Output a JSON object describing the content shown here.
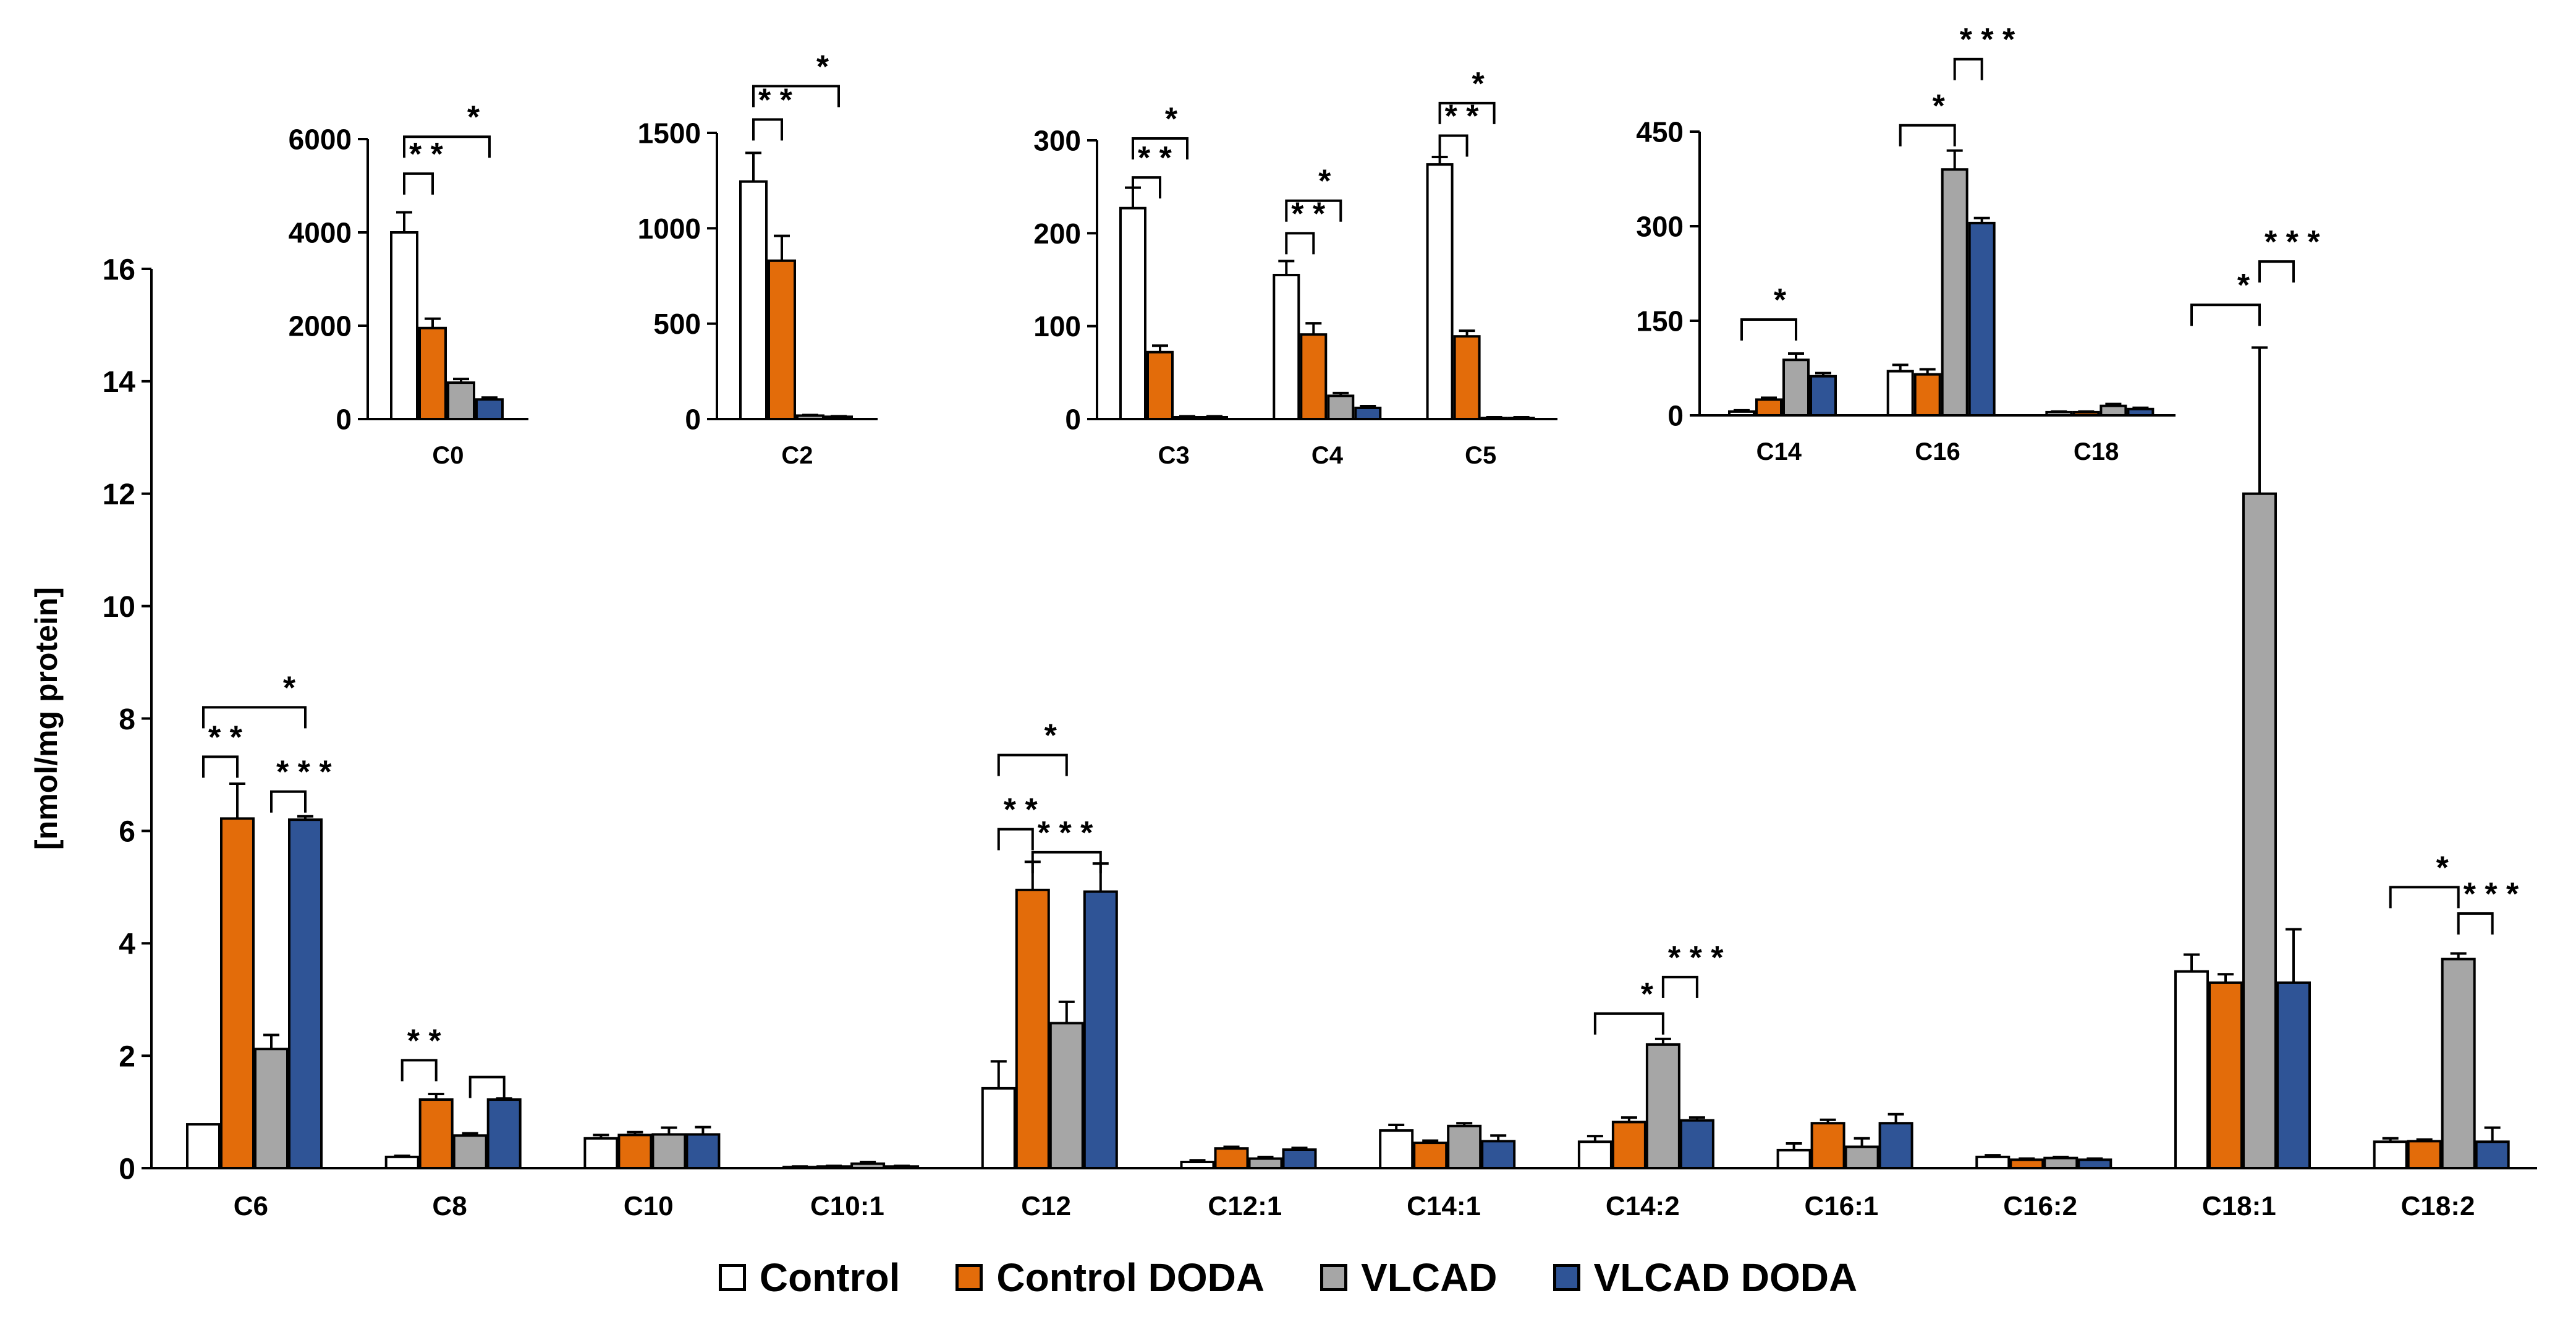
{
  "colors": {
    "Control": "#ffffff",
    "Control DODA": "#e36c0a",
    "VLCAD": "#a6a6a6",
    "VLCAD DODA": "#2f5496"
  },
  "legend": [
    {
      "label": "Control",
      "color": "#ffffff"
    },
    {
      "label": "Control DODA",
      "color": "#e36c0a"
    },
    {
      "label": "VLCAD",
      "color": "#a6a6a6"
    },
    {
      "label": "VLCAD DODA",
      "color": "#2f5496"
    }
  ],
  "chart_data": [
    {
      "id": "main",
      "type": "bar",
      "ylabel": "[nmol/mg protein]",
      "ylim": [
        0,
        16
      ],
      "yticks": [
        0,
        2,
        4,
        6,
        8,
        10,
        12,
        14,
        16
      ],
      "yticklabels": [
        "0",
        "2",
        "4",
        "6",
        "8",
        "10",
        "12",
        "14",
        "16"
      ],
      "categories": [
        "C6",
        "C8",
        "C10",
        "C10:1",
        "C12",
        "C12:1",
        "C14:1",
        "C14:2",
        "C16:1",
        "C16:2",
        "C18:1",
        "C18:2"
      ],
      "series": [
        {
          "name": "Control",
          "values": [
            0.78,
            0.2,
            0.53,
            0.02,
            1.42,
            0.11,
            0.67,
            0.47,
            0.32,
            0.2,
            3.5,
            0.47
          ],
          "errors": [
            0,
            0.02,
            0.06,
            0.01,
            0.48,
            0.03,
            0.1,
            0.1,
            0.12,
            0.03,
            0.3,
            0.06
          ]
        },
        {
          "name": "Control DODA",
          "values": [
            6.22,
            1.22,
            0.59,
            0.03,
            4.95,
            0.35,
            0.45,
            0.82,
            0.8,
            0.15,
            3.3,
            0.48
          ],
          "errors": [
            0.62,
            0.1,
            0.05,
            0.01,
            0.5,
            0.03,
            0.04,
            0.08,
            0.06,
            0.02,
            0.15,
            0.03
          ]
        },
        {
          "name": "VLCAD",
          "values": [
            2.12,
            0.58,
            0.6,
            0.08,
            2.58,
            0.17,
            0.75,
            2.2,
            0.38,
            0.18,
            12.0,
            3.72
          ],
          "errors": [
            0.25,
            0.04,
            0.12,
            0.03,
            0.38,
            0.03,
            0.05,
            0.1,
            0.15,
            0.02,
            2.6,
            0.1
          ]
        },
        {
          "name": "VLCAD DODA",
          "values": [
            6.2,
            1.22,
            0.6,
            0.03,
            4.92,
            0.33,
            0.48,
            0.85,
            0.8,
            0.15,
            3.3,
            0.47
          ],
          "errors": [
            0.06,
            0.02,
            0.13,
            0.01,
            0.5,
            0.03,
            0.1,
            0.05,
            0.16,
            0.02,
            0.95,
            0.25
          ]
        }
      ],
      "annotations": [
        {
          "text": "* *",
          "from": [
            0,
            0
          ],
          "to": [
            0,
            1
          ],
          "level": 7.32
        },
        {
          "text": "*",
          "from": [
            0,
            0
          ],
          "to": [
            0,
            3
          ],
          "level": 8.2
        },
        {
          "text": "* * *",
          "from": [
            0,
            2
          ],
          "to": [
            0,
            3
          ],
          "level": 6.7
        },
        {
          "text": "* *",
          "from": [
            1,
            0
          ],
          "to": [
            1,
            1
          ],
          "level": 1.92
        },
        {
          "text": "",
          "from": [
            1,
            2
          ],
          "to": [
            1,
            3
          ],
          "level": 1.62
        },
        {
          "text": "*",
          "from": [
            4,
            0
          ],
          "to": [
            4,
            2
          ],
          "level": 7.35
        },
        {
          "text": "* *",
          "from": [
            4,
            0
          ],
          "to": [
            4,
            1
          ],
          "level": 6.03
        },
        {
          "text": "* * *",
          "from": [
            4,
            1
          ],
          "to": [
            4,
            3
          ],
          "level": 5.62
        },
        {
          "text": "*",
          "from": [
            7,
            0
          ],
          "to": [
            7,
            2
          ],
          "level": 2.75
        },
        {
          "text": "* * *",
          "from": [
            7,
            2
          ],
          "to": [
            7,
            3
          ],
          "level": 3.4
        },
        {
          "text": "*",
          "from": [
            10,
            0
          ],
          "to": [
            10,
            2
          ],
          "level": 15.36
        },
        {
          "text": "* * *",
          "from": [
            10,
            2
          ],
          "to": [
            10,
            3
          ],
          "level": 16.13
        },
        {
          "text": "*",
          "from": [
            11,
            0
          ],
          "to": [
            11,
            2
          ],
          "level": 5.0
        },
        {
          "text": "* * *",
          "from": [
            11,
            2
          ],
          "to": [
            11,
            3
          ],
          "level": 4.53
        }
      ]
    },
    {
      "id": "inset-c0",
      "type": "bar",
      "ylim": [
        0,
        6000
      ],
      "yticks": [
        0,
        2000,
        4000,
        6000
      ],
      "yticklabels": [
        "0",
        "2000",
        "4000",
        "6000"
      ],
      "categories": [
        "C0"
      ],
      "series": [
        {
          "name": "Control",
          "values": [
            4000
          ],
          "errors": [
            430
          ]
        },
        {
          "name": "Control DODA",
          "values": [
            1950
          ],
          "errors": [
            200
          ]
        },
        {
          "name": "VLCAD",
          "values": [
            780
          ],
          "errors": [
            80
          ]
        },
        {
          "name": "VLCAD DODA",
          "values": [
            420
          ],
          "errors": [
            40
          ]
        }
      ],
      "annotations": [
        {
          "text": "* *",
          "from": [
            0,
            0
          ],
          "to": [
            0,
            1
          ],
          "level": 5260
        },
        {
          "text": "*",
          "from": [
            0,
            0
          ],
          "to": [
            0,
            3
          ],
          "level": 6050
        }
      ]
    },
    {
      "id": "inset-c2",
      "type": "bar",
      "ylim": [
        0,
        1500
      ],
      "yticks": [
        0,
        500,
        1000,
        1500
      ],
      "yticklabels": [
        "0",
        "500",
        "1000",
        "1500"
      ],
      "categories": [
        "C2"
      ],
      "series": [
        {
          "name": "Control",
          "values": [
            1245
          ],
          "errors": [
            150
          ]
        },
        {
          "name": "Control DODA",
          "values": [
            830
          ],
          "errors": [
            130
          ]
        },
        {
          "name": "VLCAD",
          "values": [
            18
          ],
          "errors": [
            3
          ]
        },
        {
          "name": "VLCAD DODA",
          "values": [
            12
          ],
          "errors": [
            3
          ]
        }
      ],
      "annotations": [
        {
          "text": "* *",
          "from": [
            0,
            0
          ],
          "to": [
            0,
            1
          ],
          "level": 1570
        },
        {
          "text": "*",
          "from": [
            0,
            0
          ],
          "to": [
            0,
            3
          ],
          "level": 1745
        }
      ]
    },
    {
      "id": "inset-c3c5",
      "type": "bar",
      "ylim": [
        0,
        300
      ],
      "yticks": [
        0,
        100,
        200,
        300
      ],
      "yticklabels": [
        "0",
        "100",
        "200",
        "300"
      ],
      "categories": [
        "C3",
        "C4",
        "C5"
      ],
      "series": [
        {
          "name": "Control",
          "values": [
            227,
            155,
            274
          ],
          "errors": [
            22,
            15,
            8
          ]
        },
        {
          "name": "Control DODA",
          "values": [
            72,
            91,
            89
          ],
          "errors": [
            7,
            12,
            6
          ]
        },
        {
          "name": "VLCAD",
          "values": [
            2,
            25,
            1
          ],
          "errors": [
            1,
            3,
            1
          ]
        },
        {
          "name": "VLCAD DODA",
          "values": [
            2,
            12,
            1
          ],
          "errors": [
            1,
            2,
            1
          ]
        }
      ],
      "annotations": [
        {
          "text": "* *",
          "from": [
            0,
            0
          ],
          "to": [
            0,
            1
          ],
          "level": 260
        },
        {
          "text": "*",
          "from": [
            0,
            0
          ],
          "to": [
            0,
            2
          ],
          "level": 302
        },
        {
          "text": "* *",
          "from": [
            1,
            0
          ],
          "to": [
            1,
            1
          ],
          "level": 200
        },
        {
          "text": "*",
          "from": [
            1,
            0
          ],
          "to": [
            1,
            2
          ],
          "level": 235
        },
        {
          "text": "* *",
          "from": [
            2,
            0
          ],
          "to": [
            2,
            1
          ],
          "level": 305
        },
        {
          "text": "*",
          "from": [
            2,
            0
          ],
          "to": [
            2,
            2
          ],
          "level": 340
        }
      ]
    },
    {
      "id": "inset-c14c18",
      "type": "bar",
      "ylim": [
        0,
        450
      ],
      "yticks": [
        0,
        150,
        300,
        450
      ],
      "yticklabels": [
        "0",
        "150",
        "300",
        "450"
      ],
      "categories": [
        "C14",
        "C16",
        "C18"
      ],
      "series": [
        {
          "name": "Control",
          "values": [
            6,
            70,
            5
          ],
          "errors": [
            2,
            10,
            1
          ]
        },
        {
          "name": "Control DODA",
          "values": [
            25,
            65,
            5
          ],
          "errors": [
            3,
            8,
            1
          ]
        },
        {
          "name": "VLCAD",
          "values": [
            88,
            390,
            15
          ],
          "errors": [
            10,
            30,
            3
          ]
        },
        {
          "name": "VLCAD DODA",
          "values": [
            62,
            305,
            10
          ],
          "errors": [
            5,
            8,
            2
          ]
        }
      ],
      "annotations": [
        {
          "text": "*",
          "from": [
            0,
            0
          ],
          "to": [
            0,
            2
          ],
          "level": 152
        },
        {
          "text": "*",
          "from": [
            1,
            0
          ],
          "to": [
            1,
            2
          ],
          "level": 460
        },
        {
          "text": "* * *",
          "from": [
            1,
            2
          ],
          "to": [
            1,
            3
          ],
          "level": 565
        }
      ]
    }
  ]
}
